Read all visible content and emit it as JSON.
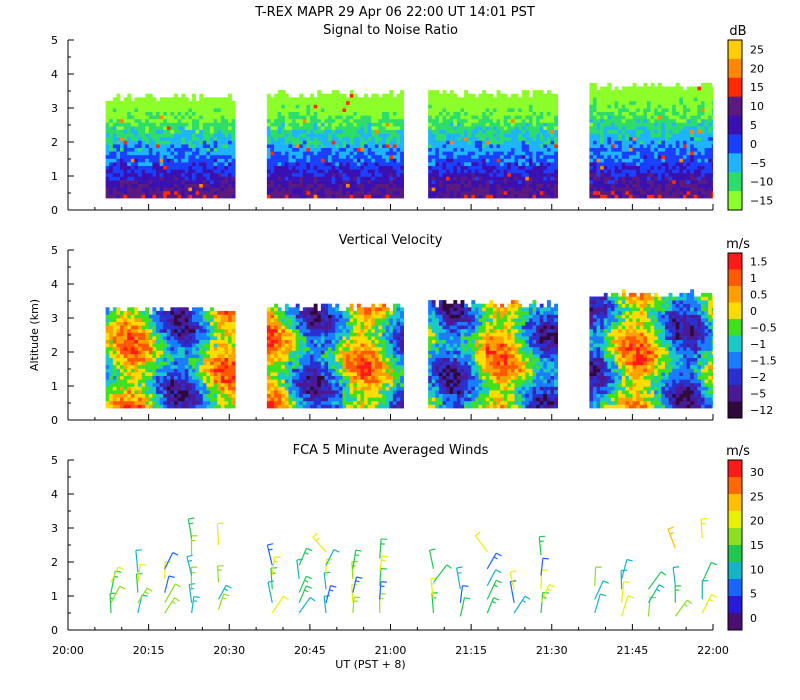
{
  "header": {
    "title": "T-REX   MAPR 29 Apr 06   22:00 UT   14:01   PST"
  },
  "chart_data": [
    {
      "type": "heatmap",
      "title": "Signal to Noise Ratio",
      "unit": "dB",
      "yticks": [
        "0",
        "1",
        "2",
        "3",
        "4",
        "5"
      ],
      "ylim": [
        0,
        5
      ],
      "colorbar": {
        "labels": [
          "25",
          "20",
          "15",
          "10",
          "5",
          "0",
          "−5",
          "−10",
          "−15"
        ],
        "colors": [
          "#ffcc00",
          "#ff8800",
          "#ff2a00",
          "#5a1a80",
          "#3a10b0",
          "#1a40ff",
          "#1eb4ff",
          "#2edc6a",
          "#8cff2a"
        ]
      },
      "segments": [
        {
          "start": "20:07",
          "end": "20:31",
          "bottom_km": 0.35,
          "top_km": 3.35
        },
        {
          "start": "20:37",
          "end": "21:02",
          "bottom_km": 0.35,
          "top_km": 3.45
        },
        {
          "start": "21:07",
          "end": "21:31",
          "bottom_km": 0.35,
          "top_km": 3.5
        },
        {
          "start": "21:37",
          "end": "22:00",
          "bottom_km": 0.35,
          "top_km": 3.7
        }
      ]
    },
    {
      "type": "heatmap",
      "title": "Vertical Velocity",
      "ylabel": "Altitude (km)",
      "unit": "m/s",
      "yticks": [
        "0",
        "1",
        "2",
        "3",
        "4",
        "5"
      ],
      "ylim": [
        0,
        5
      ],
      "colorbar": {
        "labels": [
          "1.5",
          "1",
          "0.5",
          "0",
          "−0.5",
          "−1",
          "−1.5",
          "−2",
          "−5",
          "−12"
        ],
        "colors": [
          "#ff1a1a",
          "#ff5a00",
          "#ffa000",
          "#ffdc00",
          "#40e020",
          "#1ac8c8",
          "#1a7cff",
          "#2a30d0",
          "#4a1a96",
          "#300a3c"
        ]
      },
      "segments": [
        {
          "start": "20:07",
          "end": "20:31",
          "bottom_km": 0.35,
          "top_km": 3.3
        },
        {
          "start": "20:37",
          "end": "21:02",
          "bottom_km": 0.35,
          "top_km": 3.4
        },
        {
          "start": "21:07",
          "end": "21:31",
          "bottom_km": 0.35,
          "top_km": 3.5
        },
        {
          "start": "21:37",
          "end": "22:00",
          "bottom_km": 0.35,
          "top_km": 3.75
        }
      ]
    },
    {
      "type": "scatter",
      "title": "FCA 5 Minute Averaged Winds",
      "unit": "m/s",
      "yticks": [
        "0",
        "1",
        "2",
        "3",
        "4",
        "5"
      ],
      "ylim": [
        0,
        5
      ],
      "xticks": [
        "20:00",
        "20:15",
        "20:30",
        "20:45",
        "21:00",
        "21:15",
        "21:30",
        "21:45",
        "22:00"
      ],
      "xlim": [
        "20:00",
        "22:00"
      ],
      "xlabel": "UT  (PST + 8)",
      "colorbar": {
        "labels": [
          "30",
          "25",
          "20",
          "15",
          "10",
          "5",
          "0"
        ],
        "colors": [
          "#ff1a1a",
          "#ff6a00",
          "#ffc000",
          "#e8f000",
          "#8ce020",
          "#20c850",
          "#14b4c8",
          "#1a64ff",
          "#2a1ad8",
          "#4a1070"
        ]
      },
      "barb_columns": [
        {
          "time": "20:08",
          "heights_km": [
            0.5,
            0.8,
            1.1,
            1.4
          ]
        },
        {
          "time": "20:13",
          "heights_km": [
            0.5,
            0.8,
            1.1,
            1.4,
            1.7
          ]
        },
        {
          "time": "20:18",
          "heights_km": [
            0.5,
            0.8,
            1.1,
            1.5,
            1.8
          ]
        },
        {
          "time": "20:23",
          "heights_km": [
            0.5,
            0.8,
            1.2,
            1.6,
            2.2,
            2.7
          ]
        },
        {
          "time": "20:28",
          "heights_km": [
            0.6,
            0.9,
            1.4,
            2.5
          ]
        },
        {
          "time": "20:38",
          "heights_km": [
            0.5,
            0.8,
            1.2,
            1.6,
            1.9
          ]
        },
        {
          "time": "20:43",
          "heights_km": [
            0.5,
            0.8,
            1.1,
            1.5,
            1.9
          ]
        },
        {
          "time": "20:48",
          "heights_km": [
            0.5,
            0.8,
            1.2,
            1.6,
            1.9,
            2.3
          ]
        },
        {
          "time": "20:53",
          "heights_km": [
            0.5,
            0.8,
            1.1,
            1.5,
            1.8
          ]
        },
        {
          "time": "20:58",
          "heights_km": [
            0.5,
            0.9,
            1.3,
            1.7,
            2.1
          ]
        },
        {
          "time": "21:08",
          "heights_km": [
            0.5,
            0.9,
            1.4,
            1.8
          ]
        },
        {
          "time": "21:13",
          "heights_km": [
            0.4,
            0.8,
            1.2
          ]
        },
        {
          "time": "21:18",
          "heights_km": [
            0.5,
            0.9,
            1.3,
            1.8,
            2.3
          ]
        },
        {
          "time": "21:23",
          "heights_km": [
            0.5,
            0.8,
            1.2
          ]
        },
        {
          "time": "21:28",
          "heights_km": [
            0.5,
            0.8,
            1.2,
            1.6,
            2.2
          ]
        },
        {
          "time": "21:38",
          "heights_km": [
            0.5,
            0.9,
            1.3
          ]
        },
        {
          "time": "21:43",
          "heights_km": [
            0.4,
            0.8,
            1.2,
            1.5
          ]
        },
        {
          "time": "21:48",
          "heights_km": [
            0.4,
            0.8,
            1.2
          ]
        },
        {
          "time": "21:53",
          "heights_km": [
            0.4,
            0.8,
            1.3,
            2.4
          ]
        },
        {
          "time": "21:58",
          "heights_km": [
            0.5,
            0.9,
            1.4,
            2.7
          ]
        }
      ]
    }
  ]
}
